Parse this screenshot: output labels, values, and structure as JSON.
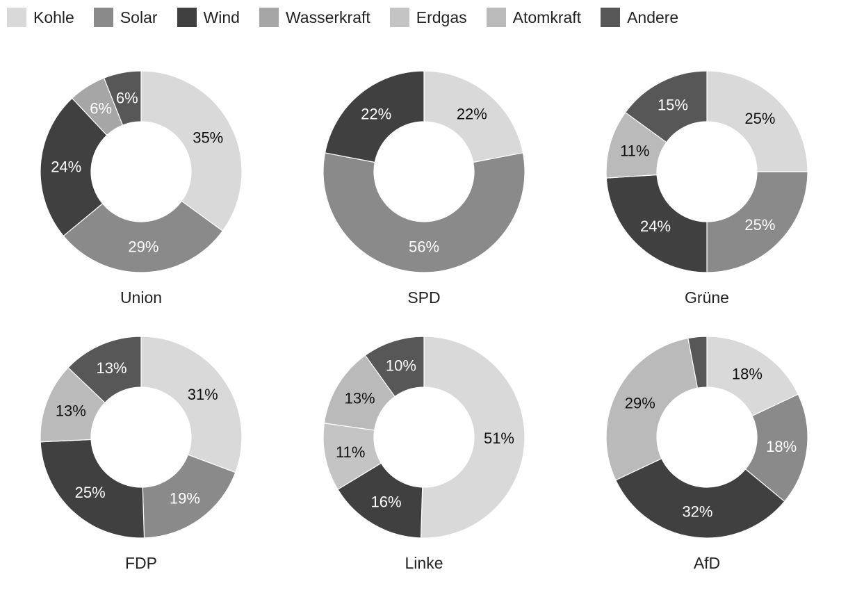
{
  "chart_data": {
    "type": "donut",
    "title": "",
    "categories": [
      "Kohle",
      "Solar",
      "Wind",
      "Wasserkraft",
      "Erdgas",
      "Atomkraft",
      "Andere"
    ],
    "colors": [
      "#d9d9d9",
      "#8a8a8a",
      "#404040",
      "#a6a6a6",
      "#c4c4c4",
      "#bababa",
      "#575757"
    ],
    "label_colors": [
      "#111111",
      "#ffffff",
      "#ffffff",
      "#ffffff",
      "#111111",
      "#111111",
      "#ffffff"
    ],
    "legend_placement": "top-left",
    "charts": [
      {
        "name": "Union",
        "values": [
          35,
          29,
          24,
          6,
          0,
          0,
          6
        ],
        "labels": [
          "35%",
          "29%",
          "24%",
          "6%",
          "",
          "",
          "6%"
        ]
      },
      {
        "name": "SPD",
        "values": [
          22,
          56,
          22,
          0,
          0,
          0,
          0
        ],
        "labels": [
          "22%",
          "56%",
          "22%",
          "",
          "",
          "",
          ""
        ]
      },
      {
        "name": "Grüne",
        "values": [
          25,
          25,
          24,
          0,
          0,
          11,
          15
        ],
        "labels": [
          "25%",
          "25%",
          "24%",
          "",
          "",
          "11%",
          "15%"
        ]
      },
      {
        "name": "FDP",
        "values": [
          31,
          19,
          25,
          0,
          0,
          13,
          13
        ],
        "labels": [
          "31%",
          "19%",
          "25%",
          "",
          "",
          "13%",
          "13%"
        ]
      },
      {
        "name": "Linke",
        "values": [
          51,
          0,
          16,
          0,
          11,
          13,
          10
        ],
        "labels": [
          "51%",
          "",
          "16%",
          "",
          "11%",
          "13%",
          "10%"
        ]
      },
      {
        "name": "AfD",
        "values": [
          18,
          18,
          32,
          0,
          0,
          29,
          3
        ],
        "labels": [
          "18%",
          "18%",
          "32%",
          "",
          "",
          "29%",
          ""
        ]
      }
    ]
  }
}
